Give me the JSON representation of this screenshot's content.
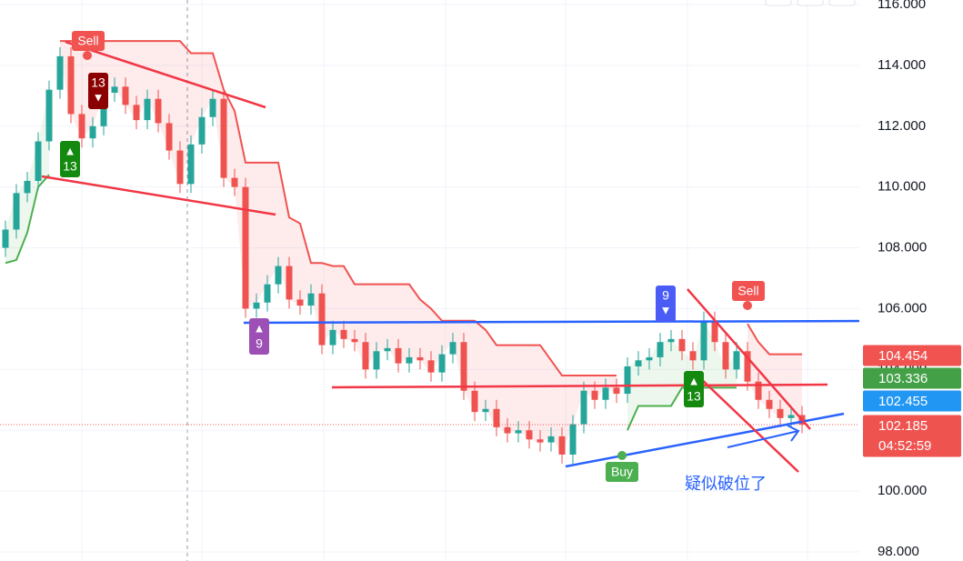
{
  "chart_data": {
    "type": "candlestick",
    "open": [
      108.0,
      108.6,
      109.8,
      110.2,
      111.5,
      113.2,
      114.3,
      112.4,
      111.6,
      112.0,
      113.1,
      113.3,
      112.7,
      112.2,
      112.9,
      112.1,
      111.2,
      110.1,
      111.4,
      112.3,
      112.9,
      110.3,
      110.0,
      106.0,
      106.2,
      106.8,
      107.4,
      106.3,
      106.1,
      106.5,
      104.8,
      105.3,
      105.0,
      104.9,
      104.0,
      104.6,
      104.7,
      104.2,
      104.4,
      104.3,
      103.9,
      104.5,
      104.9,
      103.3,
      102.6,
      102.7,
      102.1,
      101.9,
      102.0,
      101.7,
      101.6,
      101.8,
      101.2,
      102.2,
      103.3,
      103.0,
      103.4,
      103.2,
      104.1,
      104.3,
      104.4,
      104.9,
      105.0,
      104.6,
      104.3,
      105.6,
      104.9,
      104.0,
      104.6,
      103.6,
      103.0,
      102.7,
      102.4,
      102.5
    ],
    "high": [
      108.9,
      110.1,
      110.5,
      111.8,
      113.5,
      114.6,
      114.6,
      112.7,
      112.3,
      113.4,
      113.6,
      113.6,
      113.0,
      113.2,
      113.2,
      112.4,
      111.5,
      111.7,
      112.6,
      113.2,
      113.2,
      110.6,
      110.3,
      106.5,
      107.1,
      107.7,
      107.7,
      106.6,
      106.8,
      106.8,
      105.6,
      105.6,
      105.3,
      105.2,
      104.9,
      105.0,
      105.0,
      104.7,
      104.7,
      104.6,
      104.8,
      105.2,
      105.2,
      103.6,
      103.0,
      103.0,
      102.4,
      102.3,
      102.3,
      102.0,
      102.1,
      102.1,
      102.5,
      103.6,
      103.6,
      103.7,
      103.7,
      104.4,
      104.6,
      104.7,
      105.2,
      105.3,
      105.3,
      104.9,
      105.9,
      105.9,
      105.2,
      104.9,
      104.9,
      103.9,
      103.3,
      103.0,
      102.8,
      102.8
    ],
    "low": [
      107.7,
      108.3,
      109.5,
      109.9,
      111.2,
      112.9,
      112.1,
      111.3,
      111.3,
      111.7,
      112.8,
      112.4,
      111.9,
      111.9,
      111.8,
      110.9,
      109.8,
      109.8,
      111.1,
      112.0,
      110.0,
      109.7,
      105.7,
      105.7,
      105.9,
      106.5,
      106.0,
      105.8,
      105.8,
      104.5,
      104.5,
      104.7,
      104.6,
      103.7,
      103.7,
      104.3,
      103.9,
      103.9,
      104.0,
      103.6,
      103.6,
      104.2,
      103.0,
      102.3,
      102.3,
      101.8,
      101.6,
      101.6,
      101.4,
      101.3,
      101.3,
      100.9,
      100.9,
      101.9,
      102.7,
      102.7,
      102.9,
      102.9,
      103.8,
      104.0,
      104.1,
      104.6,
      104.3,
      104.0,
      104.0,
      104.6,
      103.7,
      103.7,
      103.3,
      102.7,
      102.4,
      102.1,
      102.1,
      101.9
    ],
    "close": [
      108.6,
      109.8,
      110.2,
      111.5,
      113.2,
      114.3,
      112.4,
      111.6,
      112.0,
      113.1,
      113.3,
      112.7,
      112.2,
      112.9,
      112.1,
      111.2,
      110.1,
      111.4,
      112.3,
      112.9,
      110.3,
      110.0,
      106.0,
      106.2,
      106.8,
      107.4,
      106.3,
      106.1,
      106.5,
      104.8,
      105.3,
      105.0,
      104.9,
      104.0,
      104.6,
      104.7,
      104.2,
      104.4,
      104.3,
      103.9,
      104.5,
      104.9,
      103.3,
      102.6,
      102.7,
      102.1,
      101.9,
      102.0,
      101.7,
      101.6,
      101.8,
      101.2,
      102.2,
      103.3,
      103.0,
      103.4,
      103.2,
      104.1,
      104.3,
      104.4,
      104.9,
      105.0,
      104.6,
      104.3,
      105.6,
      104.9,
      104.0,
      104.6,
      103.6,
      103.0,
      102.7,
      102.4,
      102.5,
      102.185
    ],
    "up_color": "#26a69a",
    "down_color": "#ef5350",
    "trend_upper": {
      "color": "#f05350",
      "values": [
        null,
        null,
        null,
        null,
        null,
        114.8,
        114.8,
        114.8,
        114.8,
        114.8,
        114.8,
        114.8,
        114.8,
        114.8,
        114.8,
        114.8,
        114.8,
        114.4,
        114.4,
        114.4,
        113.2,
        112.5,
        110.8,
        110.8,
        110.8,
        110.8,
        109.0,
        108.8,
        107.5,
        107.5,
        107.4,
        107.4,
        106.8,
        106.8,
        106.8,
        106.8,
        106.8,
        106.8,
        106.3,
        106.0,
        105.6,
        105.6,
        105.6,
        105.6,
        105.3,
        104.8,
        104.8,
        104.8,
        104.8,
        104.8,
        104.3,
        103.8,
        103.8,
        103.8,
        103.8,
        103.8,
        103.8,
        null,
        null,
        null,
        null,
        null,
        null,
        null,
        null,
        null,
        null,
        null,
        105.5,
        104.9,
        104.5,
        104.5,
        104.5,
        104.5
      ]
    },
    "trend_lower": {
      "color": "#4caf50",
      "values": [
        107.5,
        107.6,
        108.5,
        110.0,
        110.4,
        null,
        null,
        null,
        null,
        null,
        null,
        null,
        null,
        null,
        null,
        null,
        null,
        null,
        null,
        null,
        null,
        null,
        null,
        null,
        null,
        null,
        null,
        null,
        null,
        null,
        null,
        null,
        null,
        null,
        null,
        null,
        null,
        null,
        null,
        null,
        null,
        null,
        null,
        null,
        null,
        null,
        null,
        null,
        null,
        null,
        null,
        null,
        null,
        null,
        null,
        null,
        null,
        102.0,
        102.8,
        102.8,
        102.8,
        102.8,
        103.4,
        103.4,
        103.4,
        103.4,
        103.4,
        103.4,
        null,
        null,
        null,
        null,
        null,
        null
      ]
    },
    "ylim": [
      97.7,
      116.15
    ],
    "yticks": [
      {
        "value": 98,
        "label": "98.000"
      },
      {
        "value": 100,
        "label": "100.000"
      },
      {
        "value": 102,
        "label": "102.000"
      },
      {
        "value": 104,
        "label": "104.000"
      },
      {
        "value": 106,
        "label": "106.000"
      },
      {
        "value": 108,
        "label": "108.000"
      },
      {
        "value": 110,
        "label": "110.000"
      },
      {
        "value": 112,
        "label": "112.000"
      },
      {
        "value": 114,
        "label": "114.000"
      },
      {
        "value": 116,
        "label": "116.000"
      }
    ],
    "grid": true,
    "price_tags": [
      {
        "value": 104.454,
        "label": "104.454",
        "color": "#f05350"
      },
      {
        "value": 103.336,
        "label": "103.336",
        "color": "#43a047"
      },
      {
        "value": 102.455,
        "label": "102.455",
        "color": "#2196f3"
      },
      {
        "value": 102.185,
        "label": "102.185",
        "time": "04:52:59",
        "color": "#ef5350"
      }
    ],
    "annotations": [
      {
        "text": "Sell",
        "color": "#f05350"
      },
      {
        "text": "13",
        "arrow": "▼",
        "color": "#8b0000"
      },
      {
        "text": "13",
        "arrow": "▲",
        "color": "#138a0f"
      },
      {
        "text": "9",
        "arrow": "▲",
        "color": "#9c50b6"
      },
      {
        "text": "9",
        "arrow": "▼",
        "color": "#4a5cf5"
      },
      {
        "text": "13",
        "arrow": "▲",
        "color": "#138a0f"
      },
      {
        "text": "Buy",
        "color": "#4caf50"
      },
      {
        "text": "Sell",
        "color": "#f05350"
      },
      {
        "text": "疑似破位了",
        "color": "#2962ff"
      }
    ]
  }
}
